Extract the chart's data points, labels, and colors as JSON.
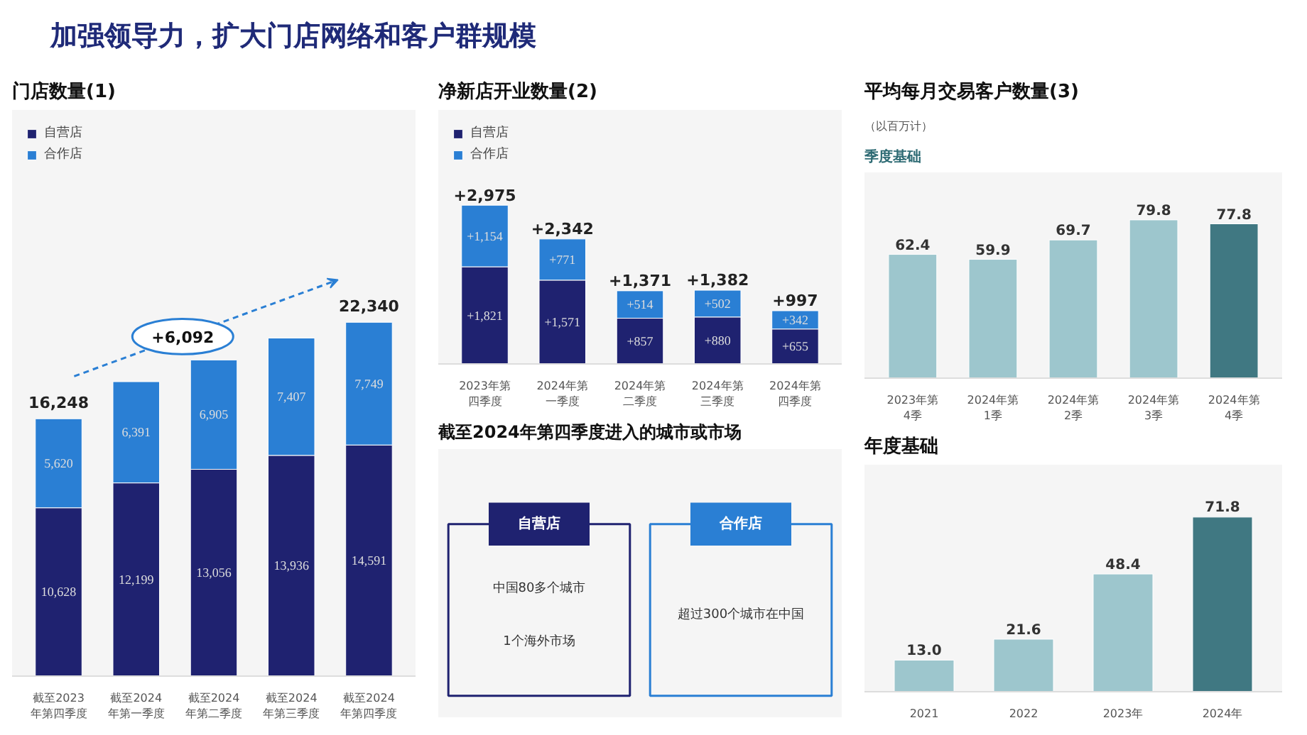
{
  "chart_data": [
    {
      "type": "other",
      "title": "加强领导力，扩大门店网络和客户群规模"
    },
    {
      "type": "bar",
      "title": "门店数量(1)",
      "categories": [
        "截至2023年第四季度",
        "截至2024年第一季度",
        "截至2024年第二季度",
        "截至2024年第三季度",
        "截至2024年第四季度"
      ],
      "stacked": true,
      "legend": "top left",
      "series": [
        {
          "name": "自营店",
          "color": "#1f2270",
          "values": [
            10628,
            12199,
            13056,
            13936,
            14591
          ],
          "value_labels": [
            "10,628",
            "12,199",
            "13,056",
            "13,936",
            "14,591"
          ]
        },
        {
          "name": "合作店",
          "color": "#2a7fd4",
          "values": [
            5620,
            6391,
            6905,
            7407,
            7749
          ],
          "value_labels": [
            "5,620",
            "6,391",
            "6,905",
            "7,407",
            "7,749"
          ]
        }
      ],
      "totals": [
        "16,248",
        null,
        null,
        null,
        "22,340"
      ],
      "annotations": [
        "+6,092"
      ]
    },
    {
      "type": "bar",
      "title": "净新店开业数量(2)",
      "categories": [
        "2023年第四季度",
        "2024年第一季度",
        "2024年第二季度",
        "2024年第三季度",
        "2024年第四季度"
      ],
      "stacked": true,
      "legend": "top left",
      "series": [
        {
          "name": "自营店",
          "color": "#1f2270",
          "values": [
            1821,
            1571,
            857,
            880,
            655
          ],
          "value_labels": [
            "+1,821",
            "+1,571",
            "+857",
            "+880",
            "+655"
          ]
        },
        {
          "name": "合作店",
          "color": "#2a7fd4",
          "values": [
            1154,
            771,
            514,
            502,
            342
          ],
          "value_labels": [
            "+1,154",
            "+771",
            "+514",
            "+502",
            "+342"
          ]
        }
      ],
      "totals": [
        "+2,975",
        "+2,342",
        "+1,371",
        "+1,382",
        "+997"
      ]
    },
    {
      "type": "other",
      "title": "截至2024年第四季度进入的城市或市场",
      "categories": [
        "自营店",
        "合作店"
      ],
      "colors": [
        "#1f2270",
        "#2a7fd4"
      ],
      "annotations": [
        "中国80多个城市",
        "1个海外市场",
        "超过300个城市在中国"
      ]
    },
    {
      "type": "bar",
      "title": "平均每月交易客户数量(3)",
      "subtitle": "（以百万计）",
      "annotations": [
        "季度基础"
      ],
      "categories": [
        "2023年第4季",
        "2024年第1季",
        "2024年第2季",
        "2024年第3季",
        "2024年第4季"
      ],
      "values": [
        62.4,
        59.9,
        69.7,
        79.8,
        77.8
      ],
      "colors": [
        "#9dc6cd",
        "#9dc6cd",
        "#9dc6cd",
        "#9dc6cd",
        "#407882"
      ],
      "data_labels": true
    },
    {
      "type": "bar",
      "title": "年度基础",
      "categories": [
        "2021",
        "2022",
        "2023年",
        "2024年"
      ],
      "values": [
        13.0,
        21.6,
        48.4,
        71.8
      ],
      "value_labels": [
        "13.0",
        "21.6",
        "48.4",
        "71.8"
      ],
      "colors": [
        "#9dc6cd",
        "#9dc6cd",
        "#9dc6cd",
        "#407882"
      ]
    }
  ]
}
